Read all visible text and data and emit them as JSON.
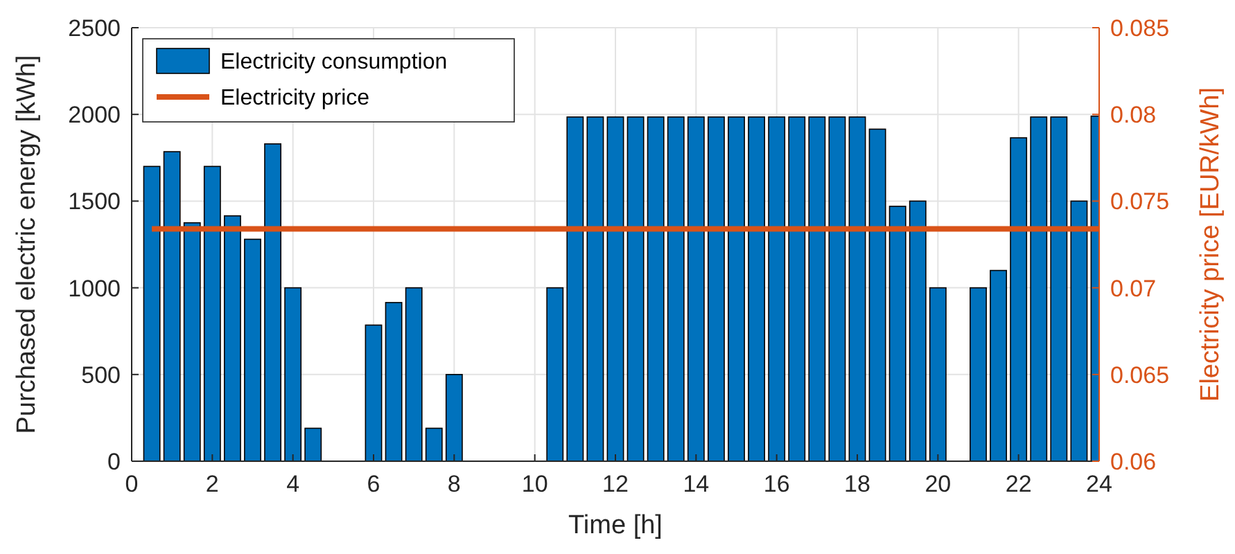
{
  "chart_data": {
    "type": "bar",
    "xlabel": "Time [h]",
    "ylabel": "Purchased electric energy [kWh]",
    "y2label": "Electricity price [EUR/kWh]",
    "x": [
      0.5,
      1,
      1.5,
      2,
      2.5,
      3,
      3.5,
      4,
      4.5,
      5,
      5.5,
      6,
      6.5,
      7,
      7.5,
      8,
      8.5,
      9,
      9.5,
      10,
      10.5,
      11,
      11.5,
      12,
      12.5,
      13,
      13.5,
      14,
      14.5,
      15,
      15.5,
      16,
      16.5,
      17,
      17.5,
      18,
      18.5,
      19,
      19.5,
      20,
      20.5,
      21,
      21.5,
      22,
      22.5,
      23,
      23.5,
      24
    ],
    "series": [
      {
        "name": "Electricity consumption",
        "color": "#0072bd",
        "values": [
          1700,
          1785,
          1375,
          1700,
          1415,
          1280,
          1830,
          1000,
          190,
          0,
          0,
          785,
          915,
          1000,
          190,
          500,
          0,
          0,
          0,
          0,
          1000,
          1985,
          1985,
          1985,
          1985,
          1985,
          1985,
          1985,
          1985,
          1985,
          1985,
          1985,
          1985,
          1985,
          1985,
          1985,
          1915,
          1470,
          1500,
          1000,
          0,
          1000,
          1100,
          1865,
          1985,
          1985,
          1500,
          1990
        ]
      },
      {
        "name": "Electricity price",
        "type": "line",
        "axis": "y2",
        "color": "#d95319",
        "x": [
          0.5,
          24
        ],
        "values": [
          0.0734,
          0.0734
        ]
      }
    ],
    "xlim": [
      0,
      24
    ],
    "xticks": [
      0,
      2,
      4,
      6,
      8,
      10,
      12,
      14,
      16,
      18,
      20,
      22,
      24
    ],
    "ylim": [
      0,
      2500
    ],
    "yticks": [
      0,
      500,
      1000,
      1500,
      2000,
      2500
    ],
    "y2lim": [
      0.06,
      0.085
    ],
    "y2ticks": [
      0.06,
      0.065,
      0.07,
      0.075,
      0.08,
      0.085
    ],
    "grid": true,
    "legend": "top left"
  }
}
